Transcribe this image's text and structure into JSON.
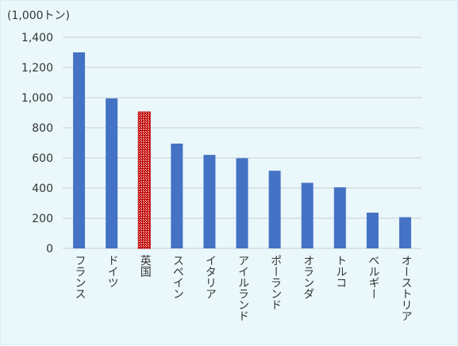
{
  "chart_data": {
    "type": "bar",
    "unit_label": "(1,000トン)",
    "categories": [
      "フランス",
      "ドイツ",
      "英国",
      "スペイン",
      "イタリア",
      "アイルランド",
      "ポーランド",
      "オランダ",
      "トルコ",
      "ベルギー",
      "オーストリア"
    ],
    "values": [
      1300,
      995,
      905,
      695,
      620,
      598,
      515,
      435,
      405,
      237,
      207
    ],
    "highlight_index": 2,
    "ylim": [
      0,
      1400
    ],
    "yticks": [
      0,
      200,
      400,
      600,
      800,
      1000,
      1200,
      1400
    ],
    "ytick_labels": [
      "0",
      "200",
      "400",
      "600",
      "800",
      "1,000",
      "1,200",
      "1,400"
    ],
    "grid": true,
    "colors": {
      "bar": "#4472c4",
      "highlight": "#c00000",
      "highlight_pattern": "#ffffff",
      "grid": "#c8d0d4",
      "background": "#eaf8fb"
    }
  }
}
